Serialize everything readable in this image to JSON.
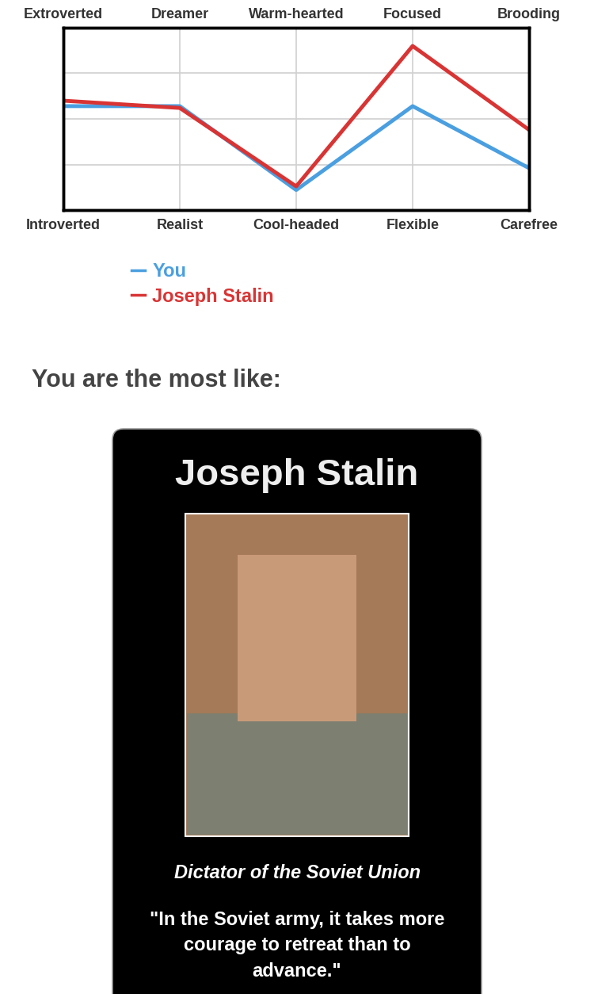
{
  "chart_data": {
    "type": "line",
    "categories": [
      "Introverted",
      "Realist",
      "Cool-headed",
      "Flexible",
      "Carefree"
    ],
    "top_categories": [
      "Extroverted",
      "Dreamer",
      "Warm-hearted",
      "Focused",
      "Brooding"
    ],
    "series": [
      {
        "name": "You",
        "color": "#4a9fe0",
        "values": [
          57,
          57,
          11,
          57,
          23
        ]
      },
      {
        "name": "Joseph Stalin",
        "color": "#d93434",
        "values": [
          60,
          56,
          13,
          90,
          44
        ]
      }
    ],
    "ylim": [
      0,
      100
    ],
    "yticks": [
      0,
      25,
      50,
      75,
      100
    ],
    "grid": true,
    "tick_labels": "x",
    "legend": "bottom"
  },
  "result": {
    "heading": "You are the most like:",
    "name": "Joseph Stalin",
    "description": "Dictator of the Soviet Union",
    "quote": "\"In the Soviet army, it takes more courage to retreat than to advance.\""
  }
}
